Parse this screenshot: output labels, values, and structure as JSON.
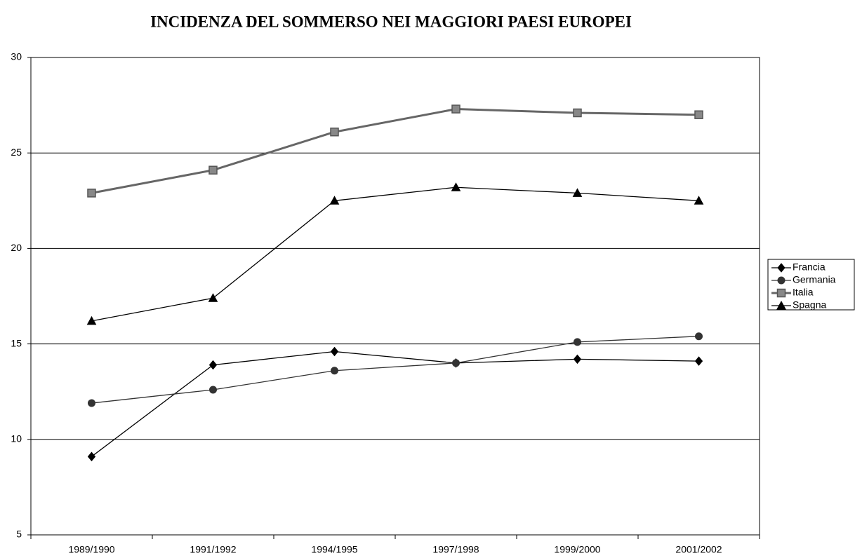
{
  "chart_data": {
    "type": "line",
    "title": "INCIDENZA DEL SOMMERSO NEI MAGGIORI PAESI EUROPEI",
    "categories": [
      "1989/1990",
      "1991/1992",
      "1994/1995",
      "1997/1998",
      "1999/2000",
      "2001/2002"
    ],
    "series": [
      {
        "name": "Francia",
        "color": "#000000",
        "marker": "diamond",
        "values": [
          9.1,
          13.9,
          14.6,
          14.0,
          14.2,
          14.1
        ]
      },
      {
        "name": "Germania",
        "color": "#333333",
        "marker": "circle",
        "values": [
          11.9,
          12.6,
          13.6,
          14.0,
          15.1,
          15.4
        ]
      },
      {
        "name": "Italia",
        "color": "#666666",
        "marker": "square",
        "values": [
          22.9,
          24.1,
          26.1,
          27.3,
          27.1,
          27.0
        ]
      },
      {
        "name": "Spagna",
        "color": "#000000",
        "marker": "triangle",
        "values": [
          16.2,
          17.4,
          22.5,
          23.2,
          22.9,
          22.5
        ]
      }
    ],
    "ylim": [
      5,
      30
    ],
    "yticks": [
      5,
      10,
      15,
      20,
      25,
      30
    ],
    "grid": true,
    "legend": "right"
  }
}
